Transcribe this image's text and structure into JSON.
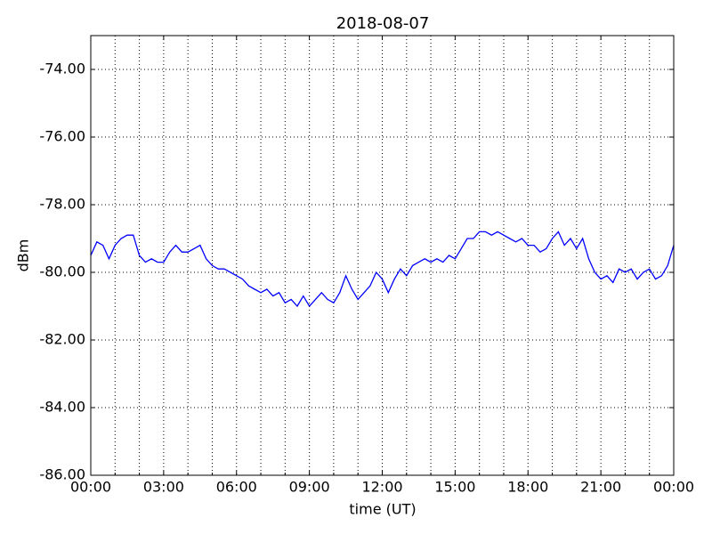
{
  "chart_data": {
    "type": "line",
    "title": "2018-08-07",
    "xlabel": "time (UT)",
    "ylabel": "dBm",
    "x": [
      0,
      0.25,
      0.5,
      0.75,
      1,
      1.25,
      1.5,
      1.75,
      2,
      2.25,
      2.5,
      2.75,
      3,
      3.25,
      3.5,
      3.75,
      4,
      4.25,
      4.5,
      4.75,
      5,
      5.25,
      5.5,
      5.75,
      6,
      6.25,
      6.5,
      6.75,
      7,
      7.25,
      7.5,
      7.75,
      8,
      8.25,
      8.5,
      8.75,
      9,
      9.25,
      9.5,
      9.75,
      10,
      10.25,
      10.5,
      10.75,
      11,
      11.25,
      11.5,
      11.75,
      12,
      12.25,
      12.5,
      12.75,
      13,
      13.25,
      13.5,
      13.75,
      14,
      14.25,
      14.5,
      14.75,
      15,
      15.25,
      15.5,
      15.75,
      16,
      16.25,
      16.5,
      16.75,
      17,
      17.25,
      17.5,
      17.75,
      18,
      18.25,
      18.5,
      18.75,
      19,
      19.25,
      19.5,
      19.75,
      20,
      20.25,
      20.5,
      20.75,
      21,
      21.25,
      21.5,
      21.75,
      22,
      22.25,
      22.5,
      22.75,
      23,
      23.25,
      23.5,
      23.75,
      24
    ],
    "series": [
      {
        "color": "#0000ff",
        "values": [
          -79.5,
          -79.1,
          -79.2,
          -79.6,
          -79.2,
          -79.0,
          -78.9,
          -78.9,
          -79.5,
          -79.7,
          -79.6,
          -79.7,
          -79.7,
          -79.4,
          -79.2,
          -79.4,
          -79.4,
          -79.3,
          -79.2,
          -79.6,
          -79.8,
          -79.9,
          -79.9,
          -80.0,
          -80.1,
          -80.2,
          -80.4,
          -80.5,
          -80.6,
          -80.5,
          -80.7,
          -80.6,
          -80.9,
          -80.8,
          -81.0,
          -80.7,
          -81.0,
          -80.8,
          -80.6,
          -80.8,
          -80.9,
          -80.6,
          -80.1,
          -80.5,
          -80.8,
          -80.6,
          -80.4,
          -80.0,
          -80.2,
          -80.6,
          -80.2,
          -79.9,
          -80.1,
          -79.8,
          -79.7,
          -79.6,
          -79.7,
          -79.6,
          -79.7,
          -79.5,
          -79.6,
          -79.3,
          -79.0,
          -79.0,
          -78.8,
          -78.8,
          -78.9,
          -78.8,
          -78.9,
          -79.0,
          -79.1,
          -79.0,
          -79.2,
          -79.2,
          -79.4,
          -79.3,
          -79.0,
          -78.8,
          -79.2,
          -79.0,
          -79.3,
          -79.0,
          -79.6,
          -80.0,
          -80.2,
          -80.1,
          -80.3,
          -79.9,
          -80.0,
          -79.9,
          -80.2,
          -80.0,
          -79.9,
          -80.2,
          -80.1,
          -79.8,
          -79.2
        ]
      }
    ],
    "xlim": [
      0,
      24
    ],
    "xticks": [
      {
        "value": 0,
        "label": "00:00"
      },
      {
        "value": 3,
        "label": "03:00"
      },
      {
        "value": 6,
        "label": "06:00"
      },
      {
        "value": 9,
        "label": "09:00"
      },
      {
        "value": 12,
        "label": "12:00"
      },
      {
        "value": 15,
        "label": "15:00"
      },
      {
        "value": 18,
        "label": "18:00"
      },
      {
        "value": 21,
        "label": "21:00"
      },
      {
        "value": 24,
        "label": "00:00"
      }
    ],
    "xminorticks": [
      1,
      2,
      4,
      5,
      7,
      8,
      10,
      11,
      13,
      14,
      16,
      17,
      19,
      20,
      22,
      23
    ],
    "ylim": [
      -86,
      -73
    ],
    "yticks": [
      {
        "value": -86,
        "label": "-86.00"
      },
      {
        "value": -84,
        "label": "-84.00"
      },
      {
        "value": -82,
        "label": "-82.00"
      },
      {
        "value": -80,
        "label": "-80.00"
      },
      {
        "value": -78,
        "label": "-78.00"
      },
      {
        "value": -76,
        "label": "-76.00"
      },
      {
        "value": -74,
        "label": "-74.00"
      }
    ],
    "grid": true
  }
}
